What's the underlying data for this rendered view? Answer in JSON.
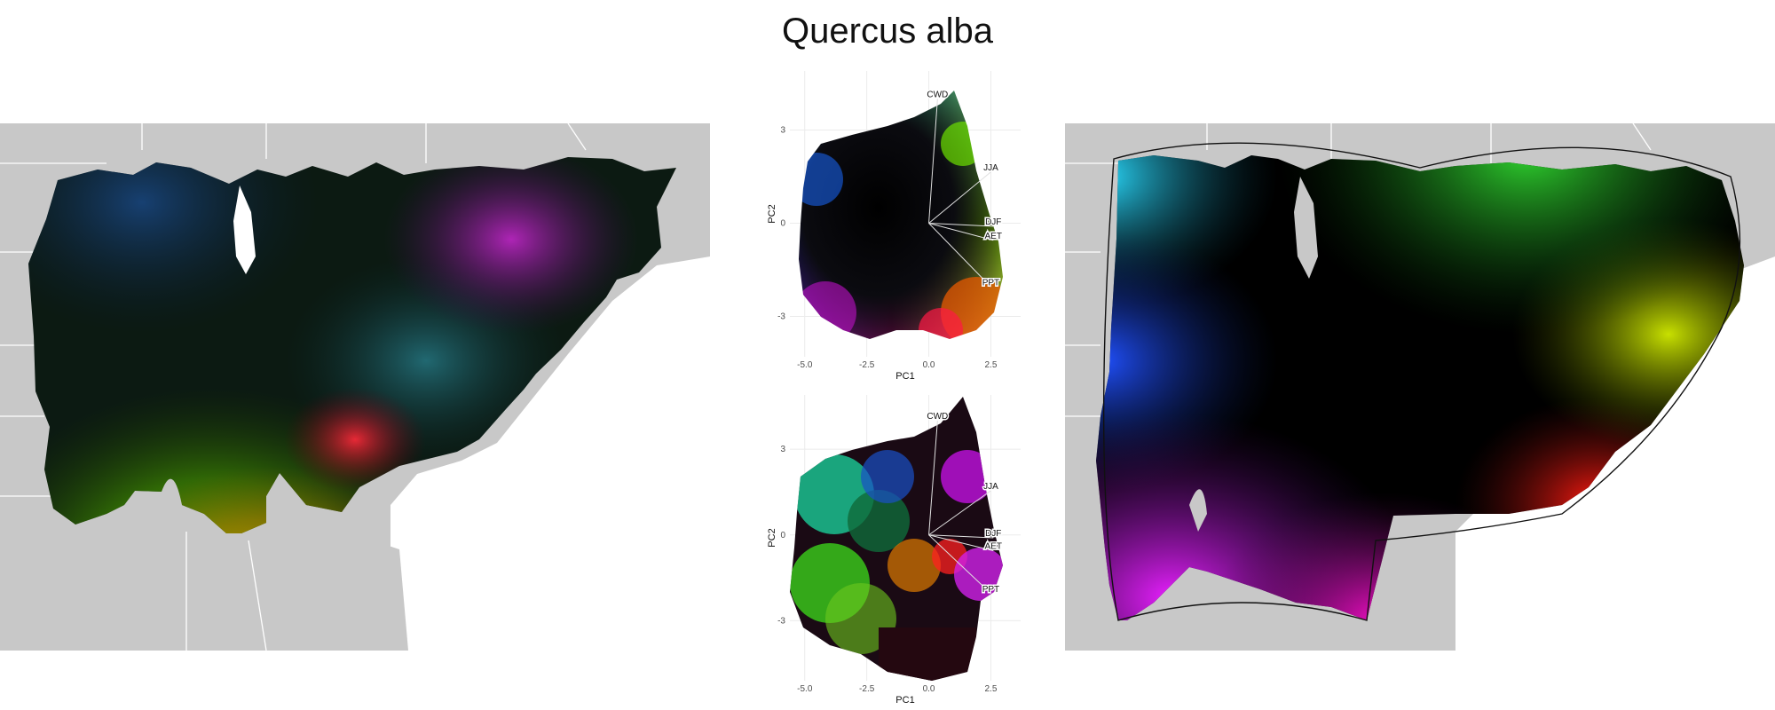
{
  "title": "Quercus alba",
  "chart_data": [
    {
      "type": "map",
      "panel": "left",
      "description_colors": {
        "background": "#ffffff",
        "land": "#c8c8c8",
        "borders": "#ffffff"
      }
    },
    {
      "type": "scatter",
      "panel": "biplot-top",
      "xlabel": "PC1",
      "ylabel": "PC2",
      "xlim": [
        -5.6,
        3.7
      ],
      "ylim": [
        -4.3,
        4.9
      ],
      "xticks": [
        -5.0,
        -2.5,
        0.0,
        2.5
      ],
      "xtick_labels": [
        "-5.0",
        "-2.5",
        "0.0",
        "2.5"
      ],
      "yticks": [
        3,
        0,
        -3
      ],
      "ytick_labels": [
        "3",
        "0",
        "-3"
      ],
      "grid": true,
      "vectors": [
        {
          "label": "CWD",
          "x": 0.35,
          "y": 4.0
        },
        {
          "label": "JJA",
          "x": 2.5,
          "y": 1.65
        },
        {
          "label": "DJF",
          "x": 2.6,
          "y": -0.1
        },
        {
          "label": "AET",
          "x": 2.6,
          "y": -0.55
        },
        {
          "label": "PPT",
          "x": 2.5,
          "y": -2.05
        }
      ]
    },
    {
      "type": "scatter",
      "panel": "biplot-bottom",
      "xlabel": "PC1",
      "ylabel": "PC2",
      "xlim": [
        -5.6,
        3.7
      ],
      "ylim": [
        -5.1,
        4.9
      ],
      "xticks": [
        -5.0,
        -2.5,
        0.0,
        2.5
      ],
      "xtick_labels": [
        "-5.0",
        "-2.5",
        "0.0",
        "2.5"
      ],
      "yticks": [
        3,
        0,
        -3
      ],
      "ytick_labels": [
        "3",
        "0",
        "-3"
      ],
      "grid": true,
      "vectors": [
        {
          "label": "CWD",
          "x": 0.35,
          "y": 4.0
        },
        {
          "label": "JJA",
          "x": 2.5,
          "y": 1.55
        },
        {
          "label": "DJF",
          "x": 2.6,
          "y": -0.1
        },
        {
          "label": "AET",
          "x": 2.6,
          "y": -0.55
        },
        {
          "label": "PPT",
          "x": 2.5,
          "y": -2.05
        }
      ]
    },
    {
      "type": "map",
      "panel": "right",
      "description_colors": {
        "background": "#ffffff",
        "land": "#c8c8c8",
        "borders": "#ffffff",
        "hull_outline": "#111111"
      }
    }
  ]
}
